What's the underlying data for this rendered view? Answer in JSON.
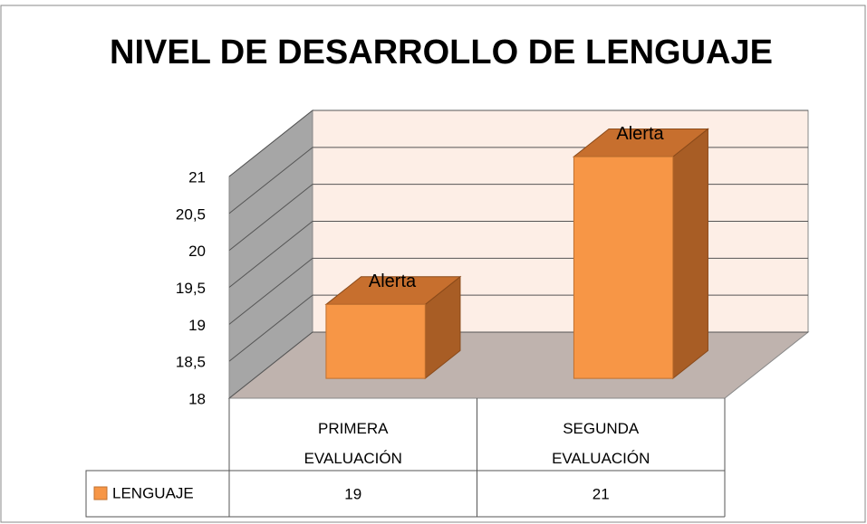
{
  "chart_data": {
    "type": "bar3d",
    "title": "NIVEL DE DESARROLLO DE LENGUAJE",
    "categories": [
      "PRIMERA EVALUACIÓN",
      "SEGUNDA EVALUACIÓN"
    ],
    "series": [
      {
        "name": "LENGUAJE",
        "color": "#f79646",
        "values": [
          19,
          21
        ],
        "value_labels": [
          "Alerta",
          "Alerta"
        ]
      }
    ],
    "ylim": [
      18,
      21
    ],
    "yticks": [
      18,
      {
        "value": 18.5,
        "label": "18,5"
      },
      19,
      {
        "value": 19.5,
        "label": "19,5"
      },
      20,
      {
        "value": 20.5,
        "label": "20,5"
      },
      21
    ],
    "grid": true,
    "data_table": true
  }
}
